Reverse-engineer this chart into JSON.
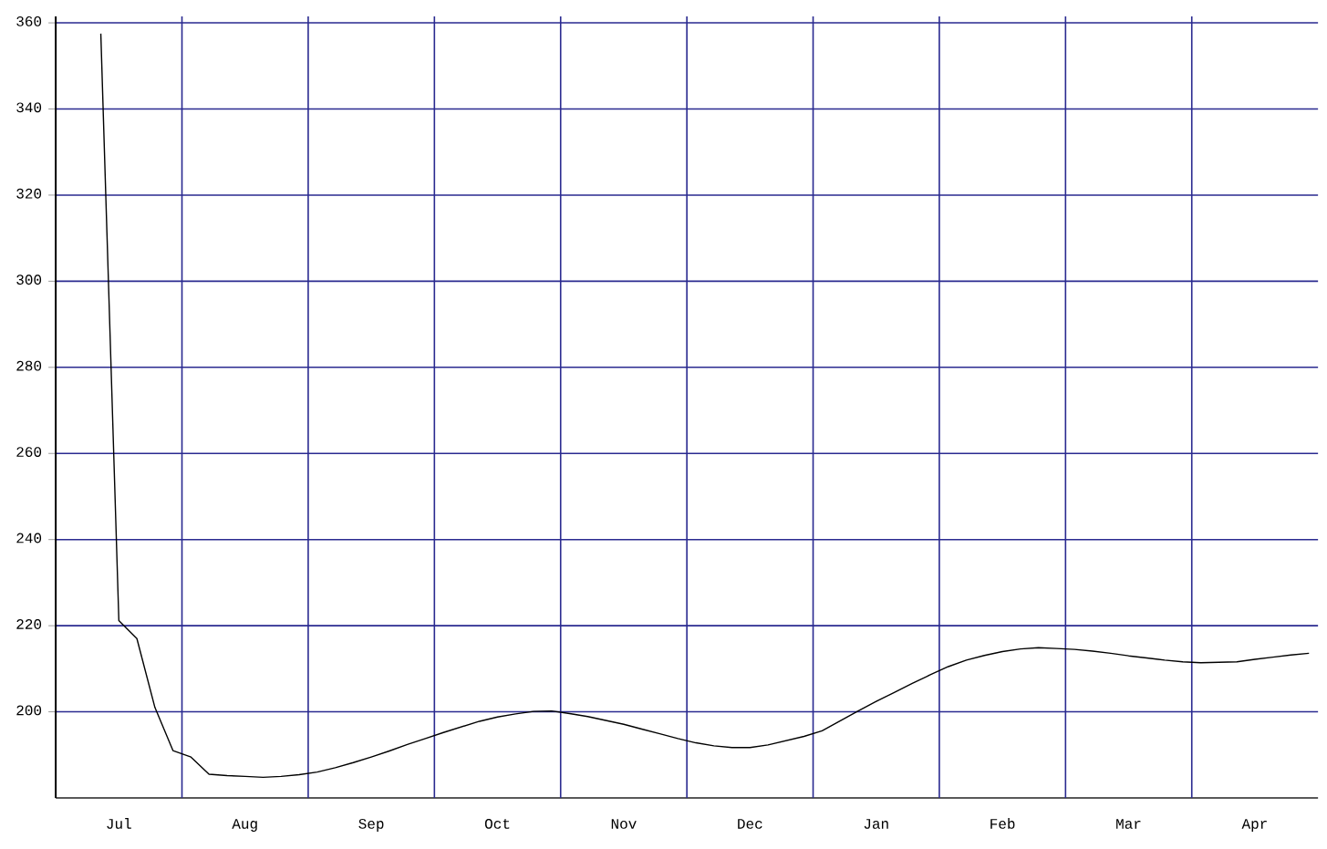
{
  "chart_data": {
    "type": "line",
    "categories": [
      null,
      null,
      null,
      "Jul",
      null,
      null,
      null,
      null,
      null,
      null,
      "Aug",
      null,
      null,
      null,
      null,
      null,
      null,
      "Sep",
      null,
      null,
      null,
      null,
      null,
      null,
      "Oct",
      null,
      null,
      null,
      null,
      null,
      null,
      "Nov",
      null,
      null,
      null,
      null,
      null,
      null,
      "Dec",
      null,
      null,
      null,
      null,
      null,
      null,
      "Jan",
      null,
      null,
      null,
      null,
      null,
      null,
      "Feb",
      null,
      null,
      null,
      null,
      null,
      null,
      "Mar",
      null,
      null,
      null,
      null,
      null,
      null,
      "Apr",
      null,
      null,
      null
    ],
    "values": [
      null,
      null,
      357.5,
      221.2,
      217,
      201,
      191,
      189.5,
      185.5,
      185.2,
      185,
      184.8,
      185,
      185.4,
      186,
      187,
      188.2,
      189.5,
      190.9,
      192.4,
      193.8,
      195.2,
      196.5,
      197.8,
      198.8,
      199.5,
      200.1,
      200.2,
      199.6,
      198.9,
      198,
      197.1,
      196,
      194.9,
      193.8,
      192.8,
      192.1,
      191.7,
      191.7,
      192.3,
      193.3,
      194.3,
      195.6,
      197.9,
      200.2,
      202.4,
      204.5,
      206.6,
      208.6,
      210.5,
      212,
      213.1,
      214,
      214.6,
      214.9,
      214.7,
      214.5,
      214.1,
      213.6,
      213,
      212.5,
      212,
      211.6,
      211.4,
      211.5,
      211.6,
      212.2,
      212.7,
      213.2,
      213.6
    ],
    "color": "#000000",
    "ylim": [
      180,
      361.5
    ],
    "yticks": [
      200,
      220,
      240,
      260,
      280,
      300,
      320,
      340,
      360
    ],
    "grid": true
  }
}
